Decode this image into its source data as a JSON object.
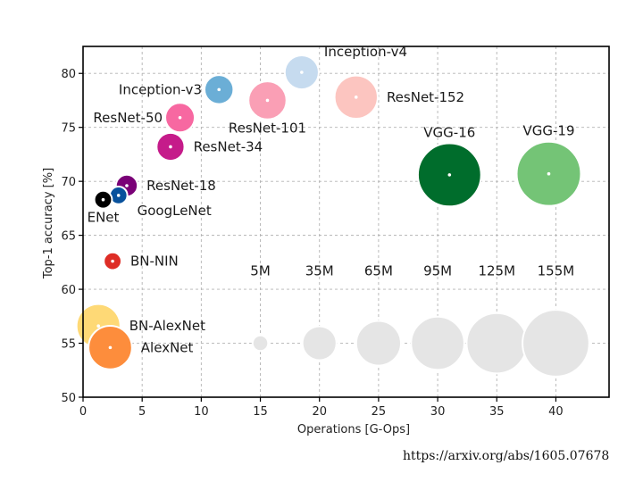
{
  "chart_data": {
    "type": "scatter",
    "subtype": "bubble",
    "xlabel": "Operations [G-Ops]",
    "ylabel": "Top-1 accuracy [%]",
    "xlim": [
      0,
      44.5
    ],
    "ylim": [
      50,
      82.5
    ],
    "xticks": [
      0,
      5,
      10,
      15,
      20,
      25,
      30,
      35,
      40
    ],
    "yticks": [
      50,
      55,
      60,
      65,
      70,
      75,
      80
    ],
    "grid": true,
    "size_unit": "parameters (millions)",
    "networks": [
      {
        "name": "Inception-v4",
        "x": 18.5,
        "y": 80.1,
        "params": 35,
        "color": "#c6dbef",
        "label_pos": "right-above"
      },
      {
        "name": "Inception-v3",
        "x": 11.5,
        "y": 78.5,
        "params": 24,
        "color": "#6baed6",
        "label_pos": "left"
      },
      {
        "name": "ResNet-101",
        "x": 15.6,
        "y": 77.5,
        "params": 45,
        "color": "#fa9fb5",
        "label_pos": "below"
      },
      {
        "name": "ResNet-152",
        "x": 23.1,
        "y": 77.8,
        "params": 60,
        "color": "#fcc5c0",
        "label_pos": "right"
      },
      {
        "name": "ResNet-50",
        "x": 8.2,
        "y": 75.9,
        "params": 25,
        "color": "#f768a1",
        "label_pos": "left"
      },
      {
        "name": "ResNet-34",
        "x": 7.4,
        "y": 73.2,
        "params": 22,
        "color": "#c51b8a",
        "label_pos": "right"
      },
      {
        "name": "ResNet-18",
        "x": 3.7,
        "y": 69.6,
        "params": 12,
        "color": "#7a0177",
        "label_pos": "right"
      },
      {
        "name": "GoogLeNet",
        "x": 3.0,
        "y": 68.7,
        "params": 7,
        "color": "#08519c",
        "label_pos": "right-below"
      },
      {
        "name": "ENet",
        "x": 1.7,
        "y": 68.3,
        "params": 7,
        "color": "#000000",
        "label_pos": "below"
      },
      {
        "name": "VGG-16",
        "x": 31.0,
        "y": 70.6,
        "params": 138,
        "color": "#006d2c",
        "label_pos": "above"
      },
      {
        "name": "VGG-19",
        "x": 39.4,
        "y": 70.7,
        "params": 143,
        "color": "#74c476",
        "label_pos": "above"
      },
      {
        "name": "BN-NIN",
        "x": 2.5,
        "y": 62.6,
        "params": 7,
        "color": "#de2d26",
        "label_pos": "right"
      },
      {
        "name": "BN-AlexNet",
        "x": 1.3,
        "y": 56.6,
        "params": 62,
        "color": "#fed976",
        "label_pos": "right"
      },
      {
        "name": "AlexNet",
        "x": 2.3,
        "y": 54.6,
        "params": 61,
        "color": "#fd8d3c",
        "label_pos": "right"
      }
    ],
    "size_legend": {
      "y": 55,
      "color": "#e5e5e5",
      "items": [
        {
          "label": "5M",
          "x": 15,
          "params": 5
        },
        {
          "label": "35M",
          "x": 20,
          "params": 35
        },
        {
          "label": "65M",
          "x": 25,
          "params": 65
        },
        {
          "label": "95M",
          "x": 30,
          "params": 95
        },
        {
          "label": "125M",
          "x": 35,
          "params": 125
        },
        {
          "label": "155M",
          "x": 40,
          "params": 155
        }
      ]
    }
  },
  "source": "https://arxiv.org/abs/1605.07678"
}
